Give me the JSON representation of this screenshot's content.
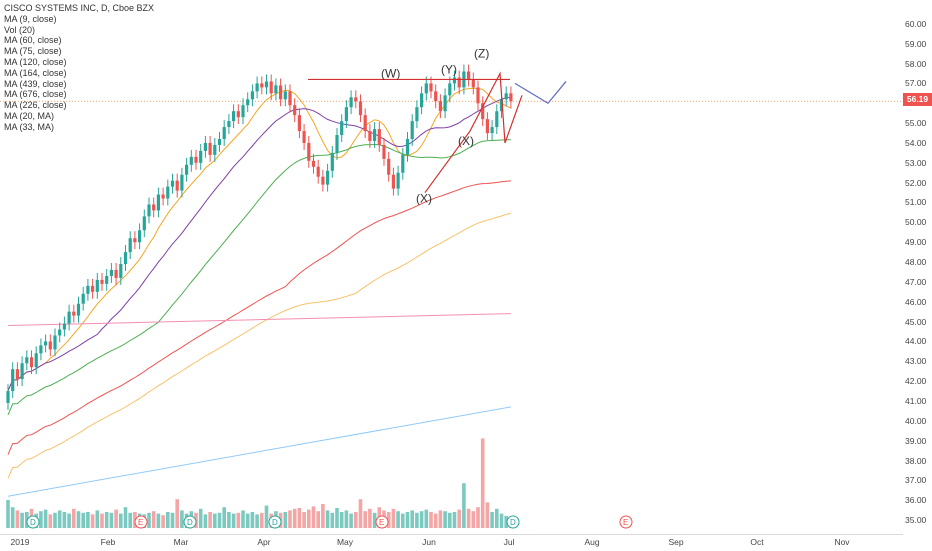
{
  "app": {
    "title": "CISCO SYSTEMS INC, D, Cboe BZX"
  },
  "legend": {
    "title": "CISCO SYSTEMS INC, D, Cboe BZX",
    "indicators": [
      "MA (9, close)",
      "Vol (20)",
      "MA (60, close)",
      "MA (75, close)",
      "MA (120, close)",
      "MA (164, close)",
      "MA (439, close)",
      "MA (676, close)",
      "MA (226, close)",
      "MA (20, MA)",
      "MA (33, MA)"
    ]
  },
  "colors": {
    "up": "#26a69a",
    "down": "#ef5350",
    "vol_up": "#7cc9c0",
    "vol_down": "#f4a5a5",
    "trend_red": "#d32f2f",
    "trend_blue": "#5c6bc0",
    "ma_colors": [
      "#f5a623",
      "#ff9800",
      "#e64a19",
      "#7e3fa6",
      "#4caf50",
      "#26a69a",
      "#f48fb1",
      "#90caf9",
      "#ef5350",
      "#f7c26b"
    ],
    "price_line": "#ef8a3a"
  },
  "chart_data": {
    "type": "candlestick",
    "title": "CISCO SYSTEMS INC, D, Cboe BZX",
    "x_labels": [
      "2019",
      "Feb",
      "Mar",
      "Apr",
      "May",
      "Jun",
      "Jul",
      "Aug",
      "Sep",
      "Oct",
      "Nov"
    ],
    "y_ticks": [
      "60.00",
      "59.00",
      "58.00",
      "57.00",
      "56.00",
      "55.00",
      "54.00",
      "53.00",
      "52.00",
      "51.00",
      "50.00",
      "49.00",
      "48.00",
      "47.00",
      "46.00",
      "45.00",
      "44.00",
      "43.00",
      "42.00",
      "41.00",
      "40.00",
      "39.00",
      "38.00",
      "37.00",
      "36.00",
      "35.00"
    ],
    "ylim": [
      34.7,
      60.8
    ],
    "last_price": "56.19",
    "grid": false,
    "closes": [
      41.5,
      42.6,
      42.1,
      42.9,
      43.2,
      42.7,
      43.4,
      43.8,
      44.0,
      43.6,
      44.3,
      44.6,
      44.9,
      45.5,
      45.3,
      45.9,
      46.4,
      46.8,
      46.5,
      47.1,
      46.9,
      47.3,
      47.6,
      47.2,
      47.9,
      48.5,
      49.2,
      49.0,
      49.6,
      50.3,
      50.9,
      50.6,
      51.4,
      51.2,
      51.8,
      52.1,
      51.6,
      52.4,
      52.9,
      53.3,
      53.0,
      53.6,
      54.0,
      53.4,
      53.9,
      54.2,
      54.8,
      55.1,
      55.6,
      55.3,
      55.9,
      56.2,
      56.6,
      57.0,
      56.8,
      57.1,
      56.5,
      56.9,
      56.2,
      56.6,
      55.9,
      55.4,
      54.6,
      54.0,
      53.1,
      52.8,
      52.3,
      51.9,
      52.6,
      53.5,
      54.4,
      55.1,
      55.8,
      56.3,
      56.1,
      55.4,
      54.6,
      54.1,
      54.7,
      53.9,
      53.2,
      52.4,
      51.7,
      52.5,
      53.4,
      54.2,
      55.1,
      55.8,
      56.5,
      57.0,
      56.6,
      56.1,
      55.6,
      56.4,
      57.0,
      57.3,
      56.8,
      57.6,
      57.2,
      56.8,
      56.0,
      55.2,
      54.5,
      54.8,
      55.6,
      56.2,
      56.5,
      56.1
    ],
    "volumes": [
      3.5,
      2.6,
      2.2,
      1.9,
      2.0,
      2.4,
      1.8,
      2.1,
      2.3,
      1.7,
      1.9,
      2.2,
      2.0,
      1.8,
      2.4,
      2.1,
      1.9,
      2.0,
      1.7,
      2.2,
      1.8,
      2.0,
      1.9,
      2.3,
      1.8,
      2.6,
      1.9,
      2.0,
      1.8,
      1.7,
      1.9,
      2.1,
      1.8,
      1.6,
      2.0,
      1.9,
      3.6,
      2.2,
      1.8,
      2.1,
      1.9,
      2.4,
      1.7,
      2.0,
      1.8,
      1.9,
      2.6,
      2.0,
      1.8,
      1.9,
      2.2,
      1.8,
      2.0,
      1.7,
      1.9,
      2.8,
      1.8,
      2.1,
      1.9,
      2.0,
      2.2,
      2.4,
      2.5,
      2.0,
      2.3,
      2.7,
      2.1,
      3.0,
      2.2,
      1.9,
      2.5,
      2.0,
      2.2,
      1.8,
      2.0,
      3.6,
      2.1,
      2.4,
      1.9,
      2.6,
      2.2,
      2.0,
      2.4,
      2.1,
      1.8,
      2.0,
      2.2,
      1.9,
      2.1,
      2.3,
      2.0,
      1.8,
      2.2,
      2.1,
      1.9,
      2.0,
      2.3,
      5.6,
      2.4,
      2.1,
      2.6,
      11.2,
      3.2,
      2.0,
      2.4,
      1.8,
      1.5,
      1.2
    ],
    "events_D": [
      "D",
      "D",
      "D",
      "D"
    ],
    "events_E": [
      "E",
      "E",
      "E"
    ],
    "annotations": [
      "(W)",
      "(Y)",
      "(Z)",
      "(X)",
      "(X)"
    ]
  }
}
